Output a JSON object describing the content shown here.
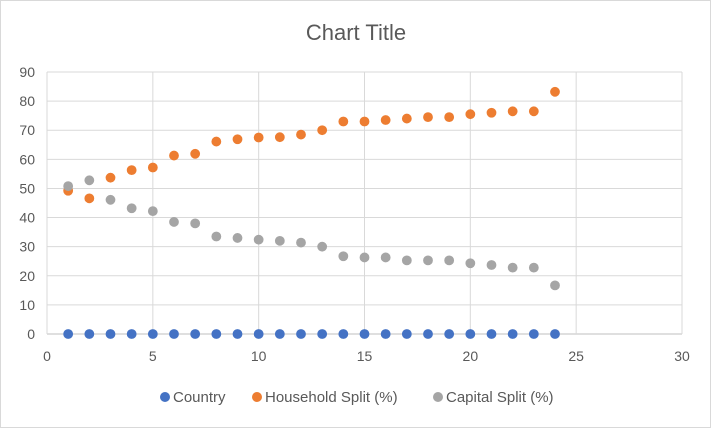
{
  "chart_data": {
    "type": "scatter",
    "title": "Chart Title",
    "xlabel": "",
    "ylabel": "",
    "xlim": [
      0,
      30
    ],
    "ylim": [
      0,
      90
    ],
    "xticks": [
      0,
      5,
      10,
      15,
      20,
      25,
      30
    ],
    "yticks": [
      0,
      10,
      20,
      30,
      40,
      50,
      60,
      70,
      80,
      90
    ],
    "grid": true,
    "legend_position": "bottom",
    "series": [
      {
        "name": "Country",
        "color": "#4472C4",
        "x": [
          1,
          2,
          3,
          4,
          5,
          6,
          7,
          8,
          9,
          10,
          11,
          12,
          13,
          14,
          15,
          16,
          17,
          18,
          19,
          20,
          21,
          22,
          23,
          24
        ],
        "y": [
          0,
          0,
          0,
          0,
          0,
          0,
          0,
          0,
          0,
          0,
          0,
          0,
          0,
          0,
          0,
          0,
          0,
          0,
          0,
          0,
          0,
          0,
          0,
          0
        ]
      },
      {
        "name": "Household Split (%)",
        "color": "#ED7D31",
        "x": [
          1,
          2,
          3,
          4,
          5,
          6,
          7,
          8,
          9,
          10,
          11,
          12,
          13,
          14,
          15,
          16,
          17,
          18,
          19,
          20,
          21,
          22,
          23,
          24
        ],
        "y": [
          49.2,
          46.6,
          53.7,
          56.3,
          57.2,
          61.3,
          61.9,
          66.1,
          66.9,
          67.5,
          67.6,
          68.5,
          70,
          73,
          73,
          73.5,
          74,
          74.5,
          74.5,
          75.5,
          76,
          76.5,
          76.5,
          83.2
        ]
      },
      {
        "name": "Capital Split (%)",
        "color": "#A5A5A5",
        "x": [
          1,
          2,
          3,
          4,
          5,
          6,
          7,
          8,
          9,
          10,
          11,
          12,
          13,
          14,
          15,
          16,
          17,
          18,
          19,
          20,
          21,
          22,
          23,
          24
        ],
        "y": [
          50.8,
          52.8,
          46.1,
          43.2,
          42.2,
          38.5,
          38,
          33.5,
          33,
          32.4,
          32,
          31.4,
          30,
          26.7,
          26.3,
          26.3,
          25.3,
          25.3,
          25.3,
          24.3,
          23.7,
          22.8,
          22.8,
          16.7
        ]
      }
    ]
  }
}
